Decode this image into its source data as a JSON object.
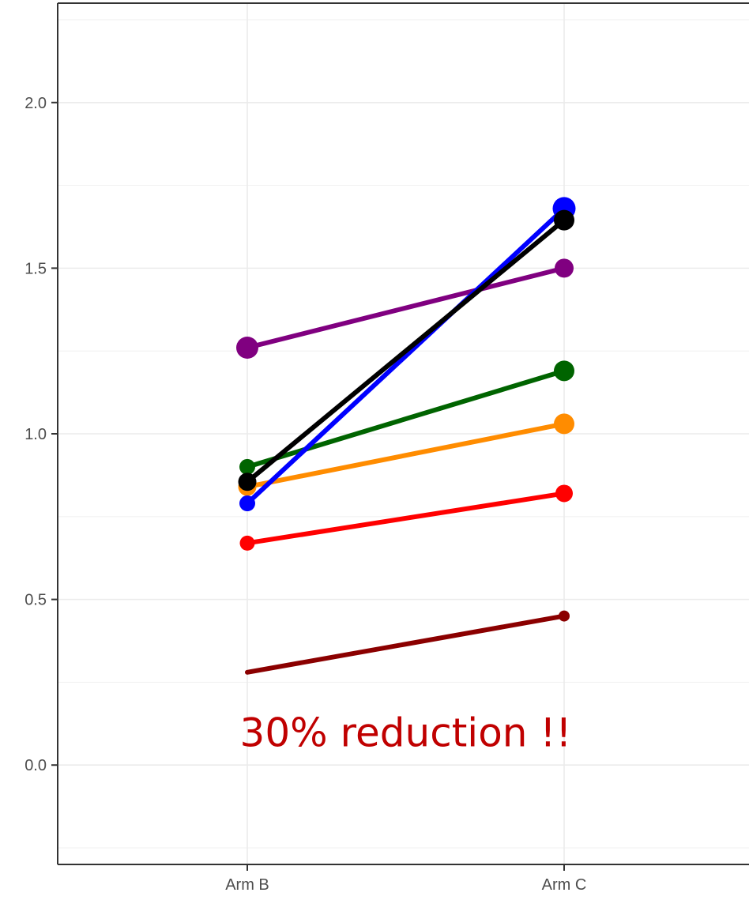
{
  "chart_data": {
    "type": "line",
    "title": "",
    "xlabel": "",
    "ylabel": "",
    "categories": [
      "Arm B",
      "Arm C"
    ],
    "ylim": [
      -0.3,
      2.3
    ],
    "yticks": [
      0.0,
      0.5,
      1.0,
      1.5,
      2.0
    ],
    "ytick_labels": [
      "0.0",
      "0.5",
      "1.0",
      "1.5",
      "2.0"
    ],
    "grid": true,
    "legend": "none",
    "annotation": {
      "text": "30% reduction !!",
      "color": "#c00000",
      "x_category": 0.5,
      "y": 0.1
    },
    "series": [
      {
        "color": "#8b0000",
        "values": [
          0.28,
          0.45
        ],
        "point_size": [
          0,
          0.7
        ]
      },
      {
        "color": "#ff0000",
        "values": [
          0.67,
          0.82
        ],
        "point_size": [
          0.95,
          1.1
        ]
      },
      {
        "color": "#ff8c00",
        "values": [
          0.84,
          1.03
        ],
        "point_size": [
          1.15,
          1.3
        ]
      },
      {
        "color": "#006400",
        "values": [
          0.9,
          1.19
        ],
        "point_size": [
          1.0,
          1.3
        ]
      },
      {
        "color": "#800080",
        "values": [
          1.26,
          1.5
        ],
        "point_size": [
          1.4,
          1.2
        ]
      },
      {
        "color": "#0000ff",
        "values": [
          0.79,
          1.68
        ],
        "point_size": [
          1.0,
          1.45
        ]
      },
      {
        "color": "#000000",
        "values": [
          0.855,
          1.645
        ],
        "point_size": [
          1.15,
          1.3
        ]
      }
    ]
  }
}
